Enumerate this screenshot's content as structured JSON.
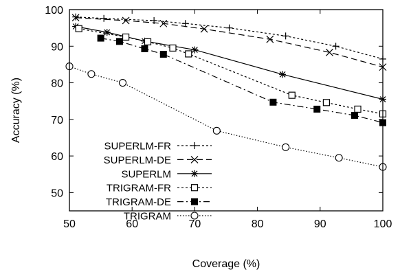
{
  "chart_data": {
    "type": "line",
    "xlabel": "Coverage (%)",
    "ylabel": "Accuracy (%)",
    "xlim": [
      50,
      100
    ],
    "ylim": [
      45,
      100
    ],
    "xticks": [
      50,
      60,
      70,
      80,
      90,
      100
    ],
    "yticks": [
      50,
      60,
      70,
      80,
      90,
      100
    ],
    "grid": false,
    "legend_position": "bottom-left",
    "series": [
      {
        "name": "SUPERLM-FR",
        "marker": "plus",
        "dash": "3,3",
        "x": [
          51,
          55.5,
          63.5,
          68.5,
          75.5,
          84.5,
          92.5,
          100
        ],
        "y": [
          98,
          97.6,
          97,
          96.2,
          95,
          92.8,
          90,
          86.5
        ]
      },
      {
        "name": "SUPERLM-DE",
        "marker": "cross",
        "dash": "9,5",
        "x": [
          51,
          59,
          65,
          71.5,
          82,
          91.5,
          100
        ],
        "y": [
          97.8,
          97,
          96.2,
          94.7,
          91.9,
          88.3,
          84.3
        ]
      },
      {
        "name": "SUPERLM",
        "marker": "star",
        "dash": "",
        "x": [
          51,
          56,
          62,
          70,
          84,
          100
        ],
        "y": [
          95.4,
          93.8,
          91.4,
          89,
          82.3,
          75.5
        ]
      },
      {
        "name": "TRIGRAM-FR",
        "marker": "square-open",
        "dash": "3,3",
        "x": [
          51.5,
          59,
          62.5,
          66.5,
          69,
          85.5,
          91,
          96,
          100
        ],
        "y": [
          94.8,
          92.5,
          91.2,
          89.5,
          87.9,
          76.6,
          74.6,
          72.8,
          71.5
        ]
      },
      {
        "name": "TRIGRAM-DE",
        "marker": "square-filled",
        "dash": "9,4,2,4",
        "x": [
          55,
          58,
          62,
          65,
          82.5,
          89.5,
          95.5,
          100
        ],
        "y": [
          92.2,
          91.3,
          89.3,
          87.8,
          74.7,
          72.8,
          71.1,
          69.1
        ]
      },
      {
        "name": "TRIGRAM",
        "marker": "circle-open",
        "dash": "1.5,2.5",
        "x": [
          50,
          53.5,
          58.5,
          73.5,
          84.5,
          93,
          100
        ],
        "y": [
          84.5,
          82.4,
          80,
          66.9,
          62.4,
          59.5,
          57
        ]
      }
    ]
  }
}
